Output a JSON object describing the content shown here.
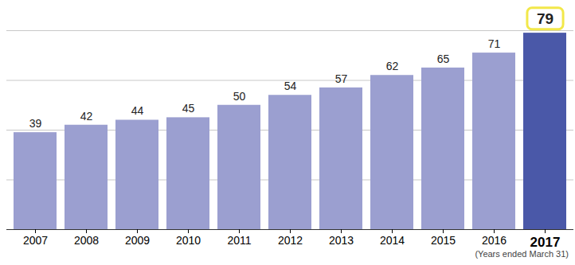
{
  "chart_data": {
    "type": "bar",
    "categories": [
      "2007",
      "2008",
      "2009",
      "2010",
      "2011",
      "2012",
      "2013",
      "2014",
      "2015",
      "2016",
      "2017"
    ],
    "values": [
      39,
      42,
      44,
      45,
      50,
      54,
      57,
      62,
      65,
      71,
      79
    ],
    "colors": [
      "#9b9fd0",
      "#9b9fd0",
      "#9b9fd0",
      "#9b9fd0",
      "#9b9fd0",
      "#9b9fd0",
      "#9b9fd0",
      "#9b9fd0",
      "#9b9fd0",
      "#9b9fd0",
      "#4a58a8"
    ],
    "ylim": [
      0,
      80
    ],
    "yticks": [
      0,
      20,
      40,
      60,
      80
    ],
    "grid": true,
    "data_labels": true,
    "tick_labels": "x",
    "annotation": "(Years ended March 31)"
  }
}
